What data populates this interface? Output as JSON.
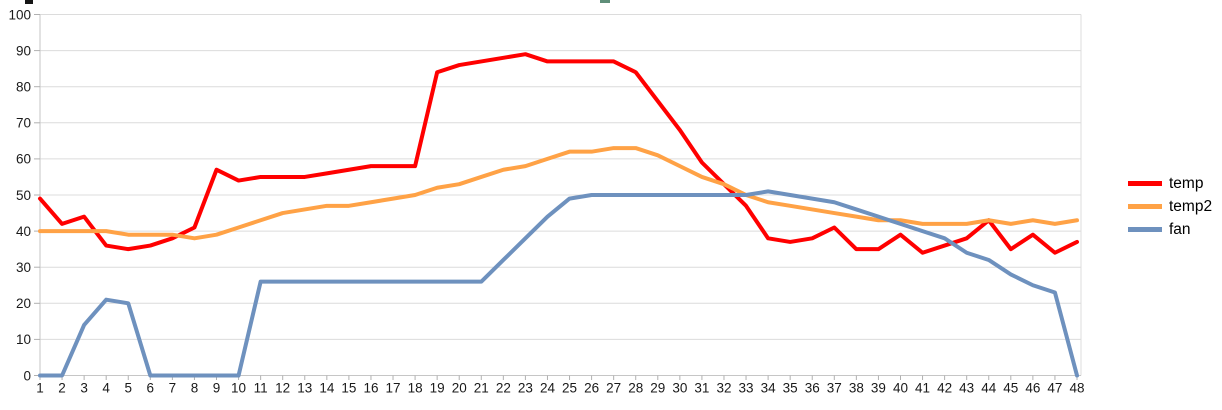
{
  "page": {
    "background": "#ffffff",
    "top_fragments": [
      {
        "name": "cutoff-title-fragment-left",
        "color": "#151515"
      },
      {
        "name": "cutoff-title-fragment-center",
        "color": "#5f8e79"
      }
    ]
  },
  "legend": {
    "items": [
      {
        "label": "temp",
        "color": "#ff0000"
      },
      {
        "label": "temp2",
        "color": "#ffa246"
      },
      {
        "label": "fan",
        "color": "#6e91be"
      }
    ]
  },
  "axis_style": {
    "grid_color": "#dcdcdc",
    "axis_color": "#c6c6c6",
    "tick_color": "#b0b0b0",
    "label_color": "#1a1a1a"
  },
  "chart_data": {
    "type": "line",
    "title": "",
    "xlabel": "",
    "ylabel": "",
    "grid": "horizontal",
    "legend_position": "right",
    "ylim": [
      0,
      100
    ],
    "y_ticks": [
      0,
      10,
      20,
      30,
      40,
      50,
      60,
      70,
      80,
      90,
      100
    ],
    "x": [
      1,
      2,
      3,
      4,
      5,
      6,
      7,
      8,
      9,
      10,
      11,
      12,
      13,
      14,
      15,
      16,
      17,
      18,
      19,
      20,
      21,
      22,
      23,
      24,
      25,
      26,
      27,
      28,
      29,
      30,
      31,
      32,
      33,
      34,
      35,
      36,
      37,
      38,
      39,
      40,
      41,
      42,
      43,
      44,
      45,
      46,
      47,
      48
    ],
    "series": [
      {
        "name": "temp",
        "color": "#ff0000",
        "values": [
          49,
          42,
          44,
          36,
          35,
          36,
          38,
          41,
          57,
          54,
          55,
          55,
          55,
          56,
          57,
          58,
          58,
          58,
          84,
          86,
          87,
          88,
          89,
          87,
          87,
          87,
          87,
          84,
          76,
          68,
          59,
          53,
          47,
          38,
          37,
          38,
          41,
          35,
          35,
          39,
          34,
          36,
          38,
          43,
          35,
          39,
          34,
          37
        ]
      },
      {
        "name": "temp2",
        "color": "#ffa246",
        "values": [
          40,
          40,
          40,
          40,
          39,
          39,
          39,
          38,
          39,
          41,
          43,
          45,
          46,
          47,
          47,
          48,
          49,
          50,
          52,
          53,
          55,
          57,
          58,
          60,
          62,
          62,
          63,
          63,
          61,
          58,
          55,
          53,
          50,
          48,
          47,
          46,
          45,
          44,
          43,
          43,
          42,
          42,
          42,
          43,
          42,
          43,
          42,
          43
        ]
      },
      {
        "name": "fan",
        "color": "#6e91be",
        "values": [
          0,
          0,
          14,
          21,
          20,
          0,
          0,
          0,
          0,
          0,
          26,
          26,
          26,
          26,
          26,
          26,
          26,
          26,
          26,
          26,
          26,
          32,
          38,
          44,
          49,
          50,
          50,
          50,
          50,
          50,
          50,
          50,
          50,
          51,
          50,
          49,
          48,
          46,
          44,
          42,
          40,
          38,
          34,
          32,
          28,
          25,
          23,
          0
        ]
      }
    ]
  }
}
